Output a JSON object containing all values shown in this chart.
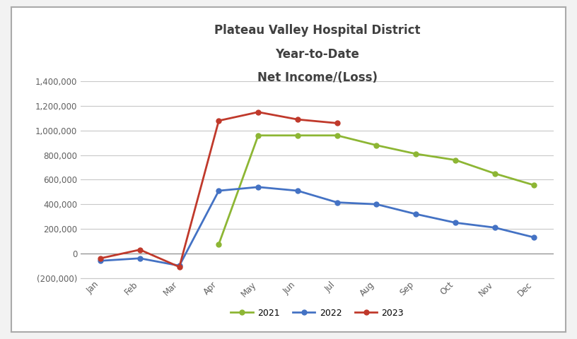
{
  "title_line1": "Plateau Valley Hospital District",
  "title_line2": "Year-to-Date",
  "title_line3": "Net Income/(Loss)",
  "months": [
    "Jan",
    "Feb",
    "Mar",
    "Apr",
    "May",
    "Jun",
    "Jul",
    "Aug",
    "Sep",
    "Oct",
    "Nov",
    "Dec"
  ],
  "series_order": [
    "2021",
    "2022",
    "2023"
  ],
  "series": {
    "2021": {
      "color": "#8DB634",
      "data": [
        null,
        null,
        null,
        75000,
        960000,
        960000,
        960000,
        880000,
        810000,
        760000,
        650000,
        555000
      ]
    },
    "2022": {
      "color": "#4472C4",
      "data": [
        -60000,
        -40000,
        -100000,
        510000,
        540000,
        510000,
        415000,
        400000,
        320000,
        250000,
        210000,
        130000
      ]
    },
    "2023": {
      "color": "#C0392B",
      "data": [
        -40000,
        30000,
        -110000,
        1080000,
        1150000,
        1090000,
        1060000,
        null,
        null,
        null,
        null,
        null
      ]
    }
  },
  "ylim": [
    -200000,
    1400000
  ],
  "yticks": [
    -200000,
    0,
    200000,
    400000,
    600000,
    800000,
    1000000,
    1200000,
    1400000
  ],
  "background_color": "#f2f2f2",
  "panel_color": "#ffffff",
  "panel_border_color": "#aaaaaa",
  "grid_color": "#c8c8c8",
  "title_color": "#404040",
  "tick_color": "#606060"
}
